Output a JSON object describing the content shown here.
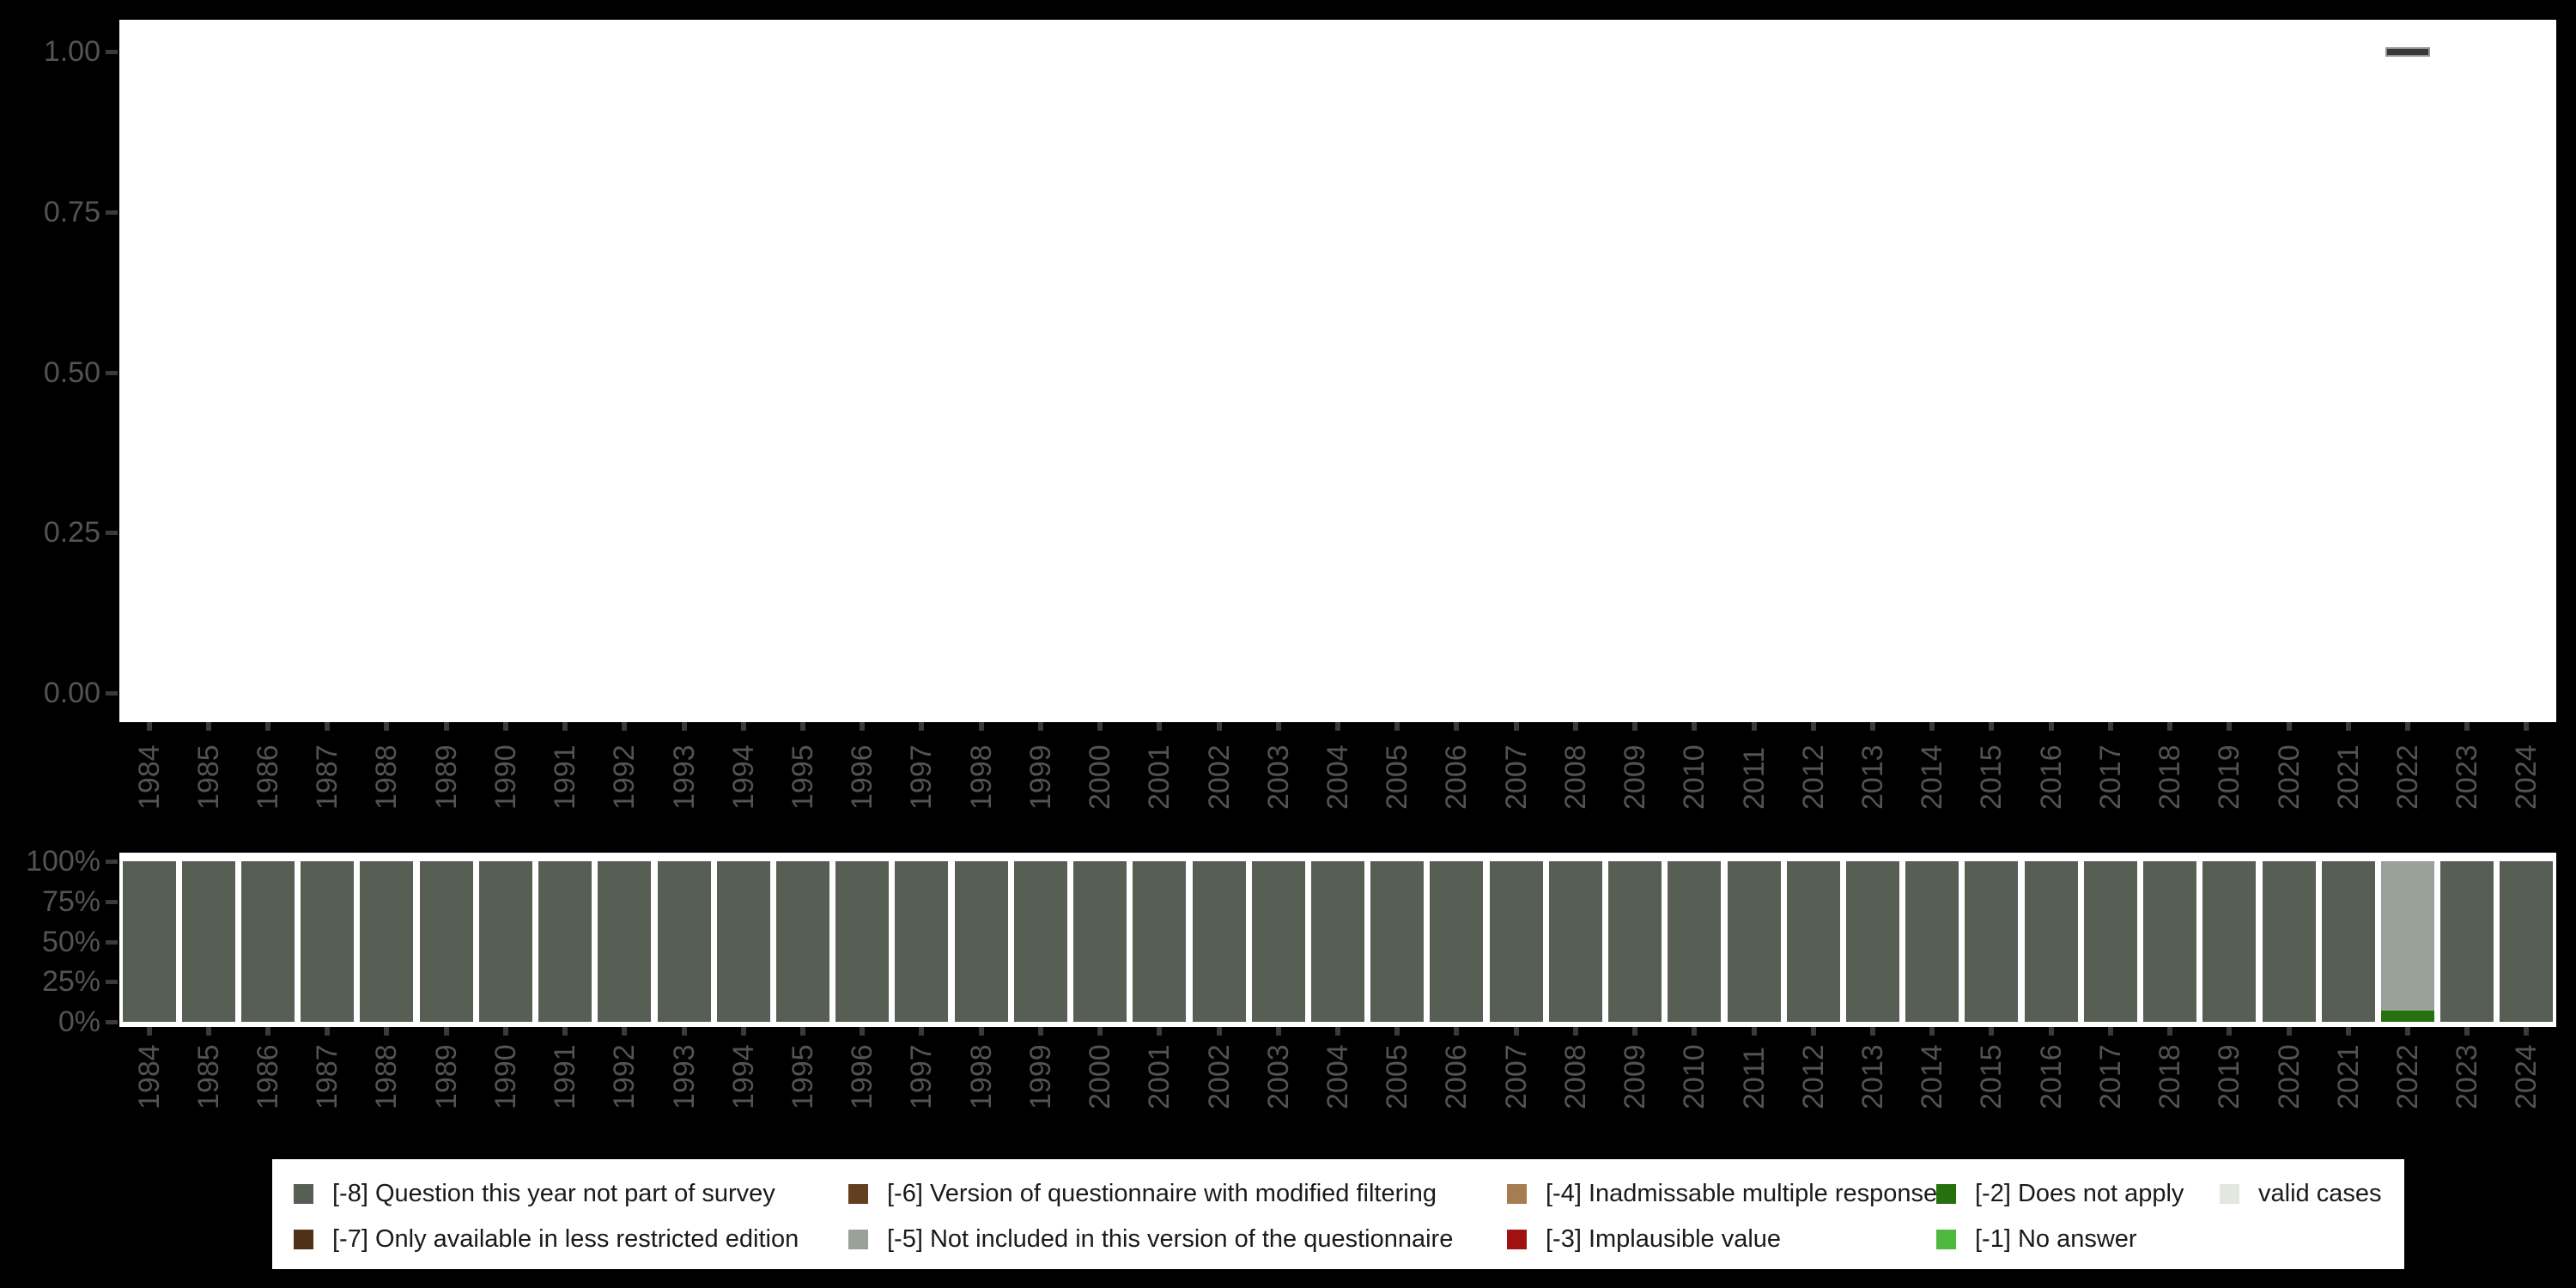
{
  "colors": {
    "page_bg": "#000000",
    "panel_bg": "#FFFFFF",
    "axis_text": "#535353",
    "tick_mark": "#3A3A3A",
    "legend_bg": "#FFFFFF",
    "legend_text": "#1A1A1A",
    "marker_fill": "#383838",
    "marker_border": "#949494"
  },
  "years": [
    "1984",
    "1985",
    "1986",
    "1987",
    "1988",
    "1989",
    "1990",
    "1991",
    "1992",
    "1993",
    "1994",
    "1995",
    "1996",
    "1997",
    "1998",
    "1999",
    "2000",
    "2001",
    "2002",
    "2003",
    "2004",
    "2005",
    "2006",
    "2007",
    "2008",
    "2009",
    "2010",
    "2011",
    "2012",
    "2013",
    "2014",
    "2015",
    "2016",
    "2017",
    "2018",
    "2019",
    "2020",
    "2021",
    "2022",
    "2023",
    "2024"
  ],
  "chart_data": [
    {
      "type": "scatter",
      "title": "",
      "xlabel": "",
      "ylabel": "",
      "marker_shape": "horizontal-dash",
      "x": [
        "2022"
      ],
      "y": [
        1.0
      ],
      "ylim": [
        0,
        1
      ],
      "ytick_labels": [
        "1.00",
        "0.75",
        "0.50",
        "0.25",
        "0.00"
      ],
      "ytick_values": [
        1.0,
        0.75,
        0.5,
        0.25,
        0.0
      ],
      "grid": false,
      "legend_position": "none"
    },
    {
      "type": "bar",
      "stacked": true,
      "unit": "percent",
      "title": "",
      "xlabel": "",
      "ylabel": "",
      "ylim": [
        0,
        100
      ],
      "ytick_labels": [
        "100%",
        "75%",
        "50%",
        "25%",
        "0%"
      ],
      "ytick_values": [
        100,
        75,
        50,
        25,
        0
      ],
      "grid": false,
      "default_segments": [
        {
          "code": "-8",
          "pct": 100
        }
      ],
      "overrides": {
        "2022": [
          {
            "code": "-2",
            "pct": 7
          },
          {
            "code": "-5",
            "pct": 93
          }
        ]
      },
      "segment_order": "bottom-to-top",
      "legend_position": "bottom"
    }
  ],
  "legend": {
    "entries": {
      "-8": {
        "label": "[-8] Question this year not part of survey",
        "color": "#575E53"
      },
      "-7": {
        "label": "[-7] Only available in less restricted edition",
        "color": "#4F3117"
      },
      "-6": {
        "label": "[-6] Version of questionnaire with modified filtering",
        "color": "#62401F"
      },
      "-5": {
        "label": "[-5] Not included in this version of the questionnaire",
        "color": "#9AA199"
      },
      "-4": {
        "label": "[-4] Inadmissable multiple response",
        "color": "#A57D50"
      },
      "-3": {
        "label": "[-3] Implausible value",
        "color": "#A01210"
      },
      "-2": {
        "label": "[-2] Does not apply",
        "color": "#26710F"
      },
      "-1": {
        "label": "[-1] No answer",
        "color": "#4FB83E"
      },
      "valid": {
        "label": "valid cases",
        "color": "#E3E7DF"
      }
    },
    "columns": [
      [
        "-8",
        "-7"
      ],
      [
        "-6",
        "-5"
      ],
      [
        "-4",
        "-3"
      ],
      [
        "-2",
        "-1"
      ],
      [
        "valid"
      ]
    ]
  }
}
